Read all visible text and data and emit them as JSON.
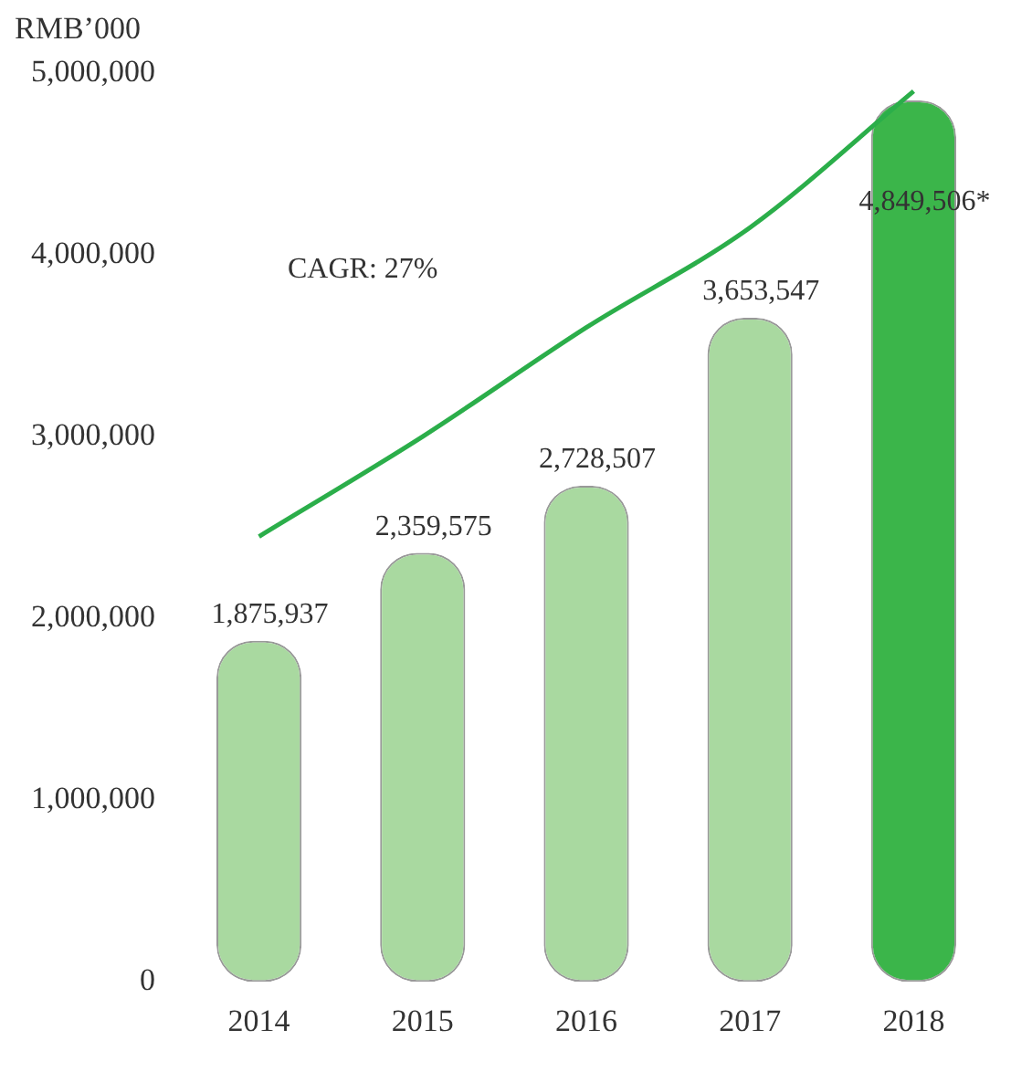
{
  "chart_data": {
    "type": "bar",
    "ylabel": "RMB’000",
    "categories": [
      "2014",
      "2015",
      "2016",
      "2017",
      "2018"
    ],
    "series": [
      {
        "colors": [
          "#a9d9a0",
          "#a9d9a0",
          "#a9d9a0",
          "#a9d9a0",
          "#3bb54a"
        ],
        "values": [
          1875937,
          2359575,
          2728507,
          3653547,
          4849506
        ],
        "value_labels": [
          "1,875,937",
          "2,359,575",
          "2,728,507",
          "3,653,547",
          "4,849,506*"
        ]
      },
      {
        "type": "line",
        "color": "#2bae4a",
        "values": [
          2450000,
          3000000,
          3600000,
          4150000,
          4900000
        ]
      }
    ],
    "annotations": [
      "CAGR: 27%"
    ],
    "ylim": [
      0,
      5000000
    ],
    "yticks": [
      {
        "value": 0,
        "label": "0"
      },
      {
        "value": 1000000,
        "label": "1,000,000"
      },
      {
        "value": 2000000,
        "label": "2,000,000"
      },
      {
        "value": 3000000,
        "label": "3,000,000"
      },
      {
        "value": 4000000,
        "label": "4,000,000"
      },
      {
        "value": 5000000,
        "label": "5,000,000"
      }
    ],
    "grid": false,
    "legend": false,
    "marker": "none",
    "line_style": "solid"
  }
}
